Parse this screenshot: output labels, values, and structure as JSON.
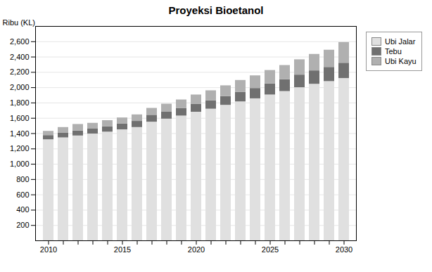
{
  "chart_data": {
    "type": "bar",
    "stacked": true,
    "title": "Proyeksi Bioetanol",
    "ylabel": "Ribu (KL)",
    "categories": [
      "2010",
      null,
      null,
      null,
      null,
      "2015",
      null,
      null,
      null,
      null,
      "2020",
      null,
      null,
      null,
      null,
      "2025",
      null,
      null,
      null,
      null,
      "2030"
    ],
    "series": [
      {
        "name": "Ubi Jalar",
        "color": "#e0e0e0",
        "values": [
          1320,
          1345,
          1370,
          1395,
          1420,
          1450,
          1480,
          1550,
          1590,
          1630,
          1680,
          1720,
          1770,
          1815,
          1855,
          1905,
          1950,
          2000,
          2045,
          2080,
          2120
        ]
      },
      {
        "name": "Tebu",
        "color": "#707070",
        "values": [
          55,
          60,
          65,
          65,
          70,
          75,
          80,
          90,
          95,
          100,
          105,
          110,
          115,
          125,
          135,
          145,
          155,
          165,
          175,
          185,
          200
        ]
      },
      {
        "name": "Ubi Kayu",
        "color": "#b0b0b0",
        "values": [
          55,
          75,
          85,
          75,
          80,
          80,
          85,
          90,
          100,
          110,
          120,
          130,
          140,
          155,
          165,
          175,
          185,
          200,
          215,
          225,
          270
        ]
      }
    ],
    "ylim": [
      0,
      2800
    ],
    "yticks": [
      200,
      400,
      600,
      800,
      {
        "value": 1000,
        "label": "1,000"
      },
      {
        "value": 1200,
        "label": "1,200"
      },
      {
        "value": 1400,
        "label": "1,400"
      },
      {
        "value": 1600,
        "label": "1,600"
      },
      {
        "value": 1800,
        "label": "1,800"
      },
      {
        "value": 2000,
        "label": "2,000"
      },
      {
        "value": 2200,
        "label": "2,200"
      },
      {
        "value": 2400,
        "label": "2,400"
      },
      {
        "value": 2600,
        "label": "2,600"
      }
    ],
    "grid": true,
    "legend": "right"
  }
}
